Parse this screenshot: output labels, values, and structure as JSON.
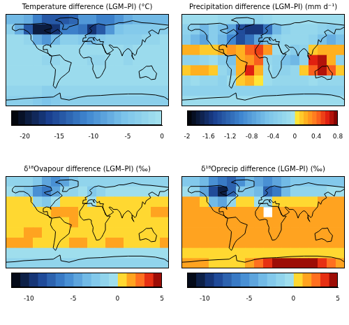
{
  "chart_data": [
    {
      "type": "heatmap",
      "title": "Temperature difference (LGM–PI) (°C)",
      "x": [
        -170,
        -150,
        -130,
        -110,
        -90,
        -70,
        -50,
        -30,
        -10,
        10,
        30,
        50,
        70,
        90,
        110,
        130,
        150,
        170
      ],
      "y": [
        80,
        60,
        40,
        20,
        0,
        -20,
        -40,
        -60,
        -80
      ],
      "xlim": [
        -180,
        180
      ],
      "ylim": [
        -90,
        90
      ],
      "tick_labels": false,
      "cells": [
        [
          -7,
          -7,
          -8,
          -12,
          -15,
          -15,
          -15,
          -14,
          -10,
          -10,
          -12,
          -12,
          -10,
          -8,
          -7,
          -7,
          -7,
          -7
        ],
        [
          -4,
          -8,
          -15,
          -20,
          -20,
          -18,
          -12,
          -12,
          -13,
          -18,
          -15,
          -10,
          -6,
          -5,
          -5,
          -5,
          -5,
          -4
        ],
        [
          -2,
          -2,
          -3,
          -8,
          -10,
          -7,
          -4,
          -4,
          -5,
          -7,
          -5,
          -4,
          -4,
          -4,
          -4,
          -3,
          -3,
          -2
        ],
        [
          -2,
          -2,
          -2,
          -2,
          -2,
          -2,
          -2,
          -2,
          -2,
          -2,
          -2,
          -2,
          -2,
          -3,
          -2,
          -2,
          -2,
          -2
        ],
        [
          -2,
          -2,
          -2,
          -2,
          -3,
          -3,
          -2,
          -2,
          -2,
          -3,
          -3,
          -2,
          -2,
          -3,
          -2,
          -2,
          -2,
          -2
        ],
        [
          -2,
          -2,
          -2,
          -2,
          -2,
          -2,
          -2,
          -2,
          -2,
          -2,
          -2,
          -2,
          -2,
          -2,
          -2,
          -2,
          -2,
          -2
        ],
        [
          -2,
          -2,
          -2,
          -2,
          -2,
          -2,
          -2,
          -2,
          -2,
          -2,
          -2,
          -2,
          -2,
          -2,
          -2,
          -2,
          -2,
          -2
        ],
        [
          -3,
          -3,
          -3,
          -3,
          -4,
          -4,
          -3,
          -3,
          -3,
          -3,
          -3,
          -3,
          -3,
          -3,
          -3,
          -3,
          -3,
          -3
        ],
        [
          -4,
          -4,
          -4,
          -5,
          -6,
          -5,
          -4,
          -4,
          -4,
          -4,
          -4,
          -4,
          -4,
          -4,
          -4,
          -4,
          -4,
          -4
        ]
      ],
      "colorbar": {
        "range": [
          -22,
          0
        ],
        "ticks": [
          -20,
          -15,
          -10,
          -5,
          0
        ]
      }
    },
    {
      "type": "heatmap",
      "title": "Precipitation difference (LGM–PI) (mm d⁻¹)",
      "x": [
        -170,
        -150,
        -130,
        -110,
        -90,
        -70,
        -50,
        -30,
        -10,
        10,
        30,
        50,
        70,
        90,
        110,
        130,
        150,
        170
      ],
      "y": [
        80,
        60,
        40,
        20,
        0,
        -20,
        -40,
        -60,
        -80
      ],
      "xlim": [
        -180,
        180
      ],
      "ylim": [
        -90,
        90
      ],
      "tick_labels": false,
      "cells": [
        [
          -0.1,
          -0.1,
          -0.1,
          -0.1,
          -0.2,
          -0.2,
          -0.3,
          -0.3,
          -0.3,
          -0.2,
          -0.1,
          -0.1,
          -0.1,
          -0.1,
          -0.1,
          -0.1,
          -0.1,
          -0.1
        ],
        [
          -0.3,
          -0.4,
          -0.6,
          -0.4,
          -0.5,
          -0.8,
          -1.4,
          -1.6,
          -1.6,
          -1.2,
          -0.6,
          -0.3,
          -0.2,
          -0.2,
          -0.2,
          -0.3,
          -0.4,
          -0.3
        ],
        [
          -0.4,
          -0.6,
          -0.8,
          -0.4,
          -0.6,
          -1.0,
          -1.4,
          -1.2,
          -0.8,
          -0.5,
          -0.3,
          -0.2,
          -0.2,
          -0.2,
          -0.3,
          -0.5,
          -0.7,
          -0.5
        ],
        [
          0.2,
          0.2,
          0.1,
          0.1,
          0.2,
          0.3,
          0.2,
          0.4,
          0.5,
          0.3,
          -0.1,
          -0.2,
          -0.4,
          -0.3,
          0.1,
          0.2,
          0.2,
          0.2
        ],
        [
          -0.3,
          -0.3,
          -0.2,
          -0.1,
          -0.4,
          -0.5,
          0.2,
          0.3,
          0.4,
          -0.2,
          -0.3,
          -0.5,
          -0.6,
          -0.3,
          0.6,
          0.7,
          0.2,
          -0.3
        ],
        [
          0.1,
          0.2,
          0.2,
          0.1,
          -0.2,
          -0.4,
          0.2,
          0.6,
          0.2,
          -0.1,
          -0.3,
          -0.3,
          -0.2,
          0.1,
          0.4,
          0.7,
          0.4,
          0.1
        ],
        [
          -0.2,
          -0.1,
          -0.2,
          -0.2,
          -0.3,
          -0.1,
          0.1,
          0.2,
          0.0,
          -0.1,
          -0.2,
          -0.2,
          -0.2,
          -0.2,
          -0.1,
          -0.2,
          -0.2,
          -0.2
        ],
        [
          -0.3,
          -0.3,
          -0.3,
          -0.3,
          -0.3,
          -0.3,
          -0.3,
          -0.3,
          -0.3,
          -0.3,
          -0.3,
          -0.3,
          -0.3,
          -0.3,
          -0.3,
          -0.3,
          -0.3,
          -0.3
        ],
        [
          -0.1,
          -0.1,
          -0.1,
          -0.1,
          -0.1,
          -0.1,
          -0.1,
          -0.1,
          -0.1,
          -0.1,
          -0.1,
          -0.1,
          -0.1,
          -0.1,
          -0.1,
          -0.1,
          -0.1,
          -0.1
        ]
      ],
      "colorbar": {
        "range": [
          -2,
          0.8
        ],
        "ticks": [
          -2,
          -1.6,
          -1.2,
          -0.8,
          -0.4,
          0,
          0.4,
          0.8
        ]
      }
    },
    {
      "type": "heatmap",
      "title": "δ¹⁸Ovapour difference (LGM–PI) (‰)",
      "x": [
        -170,
        -150,
        -130,
        -110,
        -90,
        -70,
        -50,
        -30,
        -10,
        10,
        30,
        50,
        70,
        90,
        110,
        130,
        150,
        170
      ],
      "y": [
        80,
        60,
        40,
        20,
        0,
        -20,
        -40,
        -60,
        -80
      ],
      "xlim": [
        -180,
        180
      ],
      "ylim": [
        -90,
        90
      ],
      "tick_labels": false,
      "cells": [
        [
          -2,
          -2,
          -2,
          -3,
          -5,
          -6,
          -5,
          -3,
          -2,
          -2,
          -2,
          -2,
          -2,
          -2,
          -2,
          -2,
          -2,
          -2
        ],
        [
          -1,
          -2,
          -3,
          -6,
          -7,
          -5,
          -2,
          -2,
          -1,
          -3,
          -2,
          -1,
          -1,
          -1,
          -1,
          -1,
          -1,
          -1
        ],
        [
          0.5,
          0.5,
          0.5,
          -2,
          -3,
          -1,
          0.5,
          0.5,
          0.5,
          -1,
          0.5,
          0.5,
          0.5,
          0.5,
          0.5,
          0.5,
          0.5,
          0.5
        ],
        [
          0.5,
          0.5,
          0.5,
          0.5,
          0.5,
          1.5,
          1.5,
          1.5,
          0.5,
          0.5,
          0.5,
          0.5,
          0.5,
          0.5,
          0.5,
          0.5,
          1.5,
          1.5
        ],
        [
          0.5,
          0.5,
          0.5,
          0.5,
          0.5,
          0.5,
          0.5,
          1.5,
          0.5,
          0.5,
          0.5,
          0.5,
          0.5,
          0.5,
          0.5,
          0.5,
          0.5,
          0.5
        ],
        [
          0.5,
          0.5,
          1.5,
          1.5,
          0.5,
          0.5,
          0.5,
          0.5,
          0.5,
          0.5,
          0.5,
          0.5,
          0.5,
          0.5,
          0.5,
          0.5,
          0.5,
          0.5
        ],
        [
          1.5,
          1.5,
          1.5,
          0.5,
          0.5,
          0.5,
          0.5,
          1.5,
          1.5,
          0.5,
          0.5,
          1.5,
          1.5,
          0.5,
          0.5,
          0.5,
          0.5,
          1.5
        ],
        [
          -1,
          -1,
          -1,
          -1,
          -1,
          -1,
          -1,
          -1,
          -1,
          -1,
          -1,
          -1,
          -1,
          -1,
          -1,
          -1,
          -1,
          -1
        ],
        [
          -2,
          -2,
          -2,
          -2,
          -2,
          -2,
          -2,
          -2,
          -2,
          -2,
          -2,
          -2,
          -2,
          -2,
          -2,
          -2,
          -2,
          -2
        ]
      ],
      "colorbar": {
        "range": [
          -12,
          5
        ],
        "ticks": [
          -10,
          -5,
          0,
          5
        ]
      }
    },
    {
      "type": "heatmap",
      "title": "δ¹⁸Oprecip difference (LGM–PI) (‰)",
      "x": [
        -170,
        -150,
        -130,
        -110,
        -90,
        -70,
        -50,
        -30,
        -10,
        10,
        30,
        50,
        70,
        90,
        110,
        130,
        150,
        170
      ],
      "y": [
        80,
        60,
        40,
        20,
        0,
        -20,
        -40,
        -60,
        -80
      ],
      "xlim": [
        -180,
        180
      ],
      "ylim": [
        -90,
        90
      ],
      "tick_labels": false,
      "cells": [
        [
          -3,
          -3,
          -4,
          -6,
          -7,
          -8,
          -6,
          -4,
          -5,
          -6,
          -5,
          -4,
          -3,
          -3,
          -3,
          -3,
          -3,
          -3
        ],
        [
          -1,
          -2,
          -5,
          -9,
          -11,
          -8,
          -3,
          -3,
          -4,
          -8,
          -7,
          -4,
          -2,
          -2,
          -2,
          -2,
          -1,
          -1
        ],
        [
          1.5,
          1.5,
          0.5,
          -4,
          -5,
          -2,
          0.5,
          0.5,
          -1,
          -2,
          0.5,
          0.5,
          0.5,
          0.5,
          0.5,
          1.5,
          1.5,
          1.5
        ],
        [
          1.5,
          1.5,
          1.5,
          1.5,
          1.5,
          1.5,
          1.5,
          1.5,
          1.5,
          null,
          1.5,
          1.5,
          1.5,
          1.5,
          1.5,
          1.5,
          1.5,
          1.5
        ],
        [
          1.5,
          1.5,
          1.5,
          1.5,
          1.5,
          1.5,
          1.5,
          1.5,
          1.5,
          1.5,
          1.5,
          1.5,
          1.5,
          1.5,
          1.5,
          1.5,
          1.5,
          1.5
        ],
        [
          1.5,
          1.5,
          1.5,
          1.5,
          1.5,
          1.5,
          1.5,
          1.5,
          1.5,
          1.5,
          1.5,
          1.5,
          1.5,
          1.5,
          1.5,
          1.5,
          1.5,
          1.5
        ],
        [
          1.5,
          1.5,
          1.5,
          1.5,
          1.5,
          1.5,
          1.5,
          1.5,
          1.5,
          1.5,
          1.5,
          1.5,
          1.5,
          1.5,
          1.5,
          1.5,
          1.5,
          1.5
        ],
        [
          0.5,
          0.5,
          0.5,
          0.5,
          0.5,
          0.5,
          0.5,
          0.5,
          0.5,
          0.5,
          0.5,
          0.5,
          0.5,
          0.5,
          0.5,
          0.5,
          0.5,
          0.5
        ],
        [
          1.5,
          1.5,
          1.5,
          0.5,
          0.5,
          0.5,
          0.5,
          1.5,
          2.5,
          3.5,
          4.5,
          4.5,
          4.5,
          4.5,
          4.5,
          3.5,
          2.5,
          1.5
        ]
      ],
      "colorbar": {
        "range": [
          -12,
          5
        ],
        "ticks": [
          -10,
          -5,
          0,
          5
        ]
      }
    }
  ]
}
